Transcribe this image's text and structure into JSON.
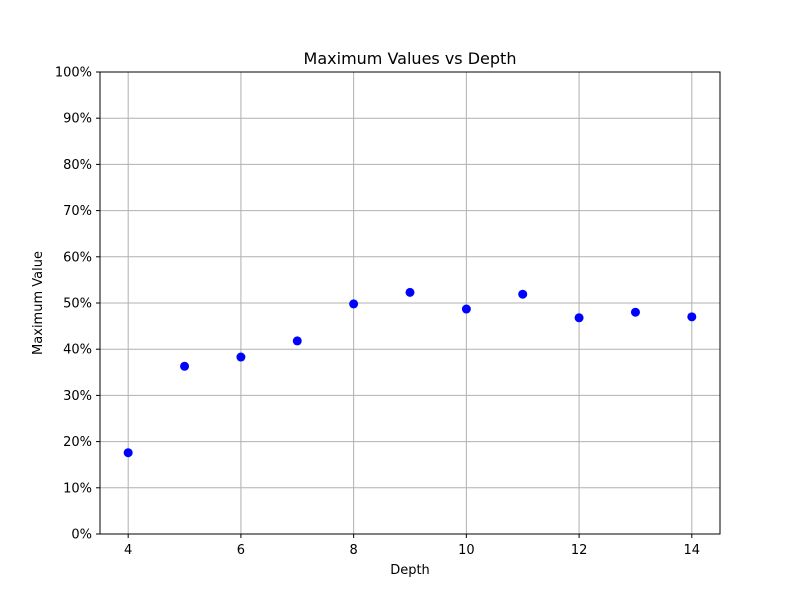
{
  "chart_data": {
    "type": "scatter",
    "title": "Maximum Values vs Depth",
    "xlabel": "Depth",
    "ylabel": "Maximum Value",
    "xlim": [
      3.5,
      14.5
    ],
    "ylim": [
      0,
      1
    ],
    "xticks": [
      4,
      6,
      8,
      10,
      12,
      14
    ],
    "xtick_labels": [
      "4",
      "6",
      "8",
      "10",
      "12",
      "14"
    ],
    "yticks": [
      0,
      0.1,
      0.2,
      0.3,
      0.4,
      0.5,
      0.6,
      0.7,
      0.8,
      0.9,
      1.0
    ],
    "ytick_labels": [
      "0%",
      "10%",
      "20%",
      "30%",
      "40%",
      "50%",
      "60%",
      "70%",
      "80%",
      "90%",
      "100%"
    ],
    "grid": true,
    "marker_color": "#0000ff",
    "series": [
      {
        "x": [
          4,
          5,
          6,
          7,
          8,
          9,
          10,
          11,
          12,
          13,
          14
        ],
        "y": [
          0.176,
          0.363,
          0.383,
          0.418,
          0.498,
          0.523,
          0.487,
          0.519,
          0.468,
          0.48,
          0.47
        ]
      }
    ]
  }
}
